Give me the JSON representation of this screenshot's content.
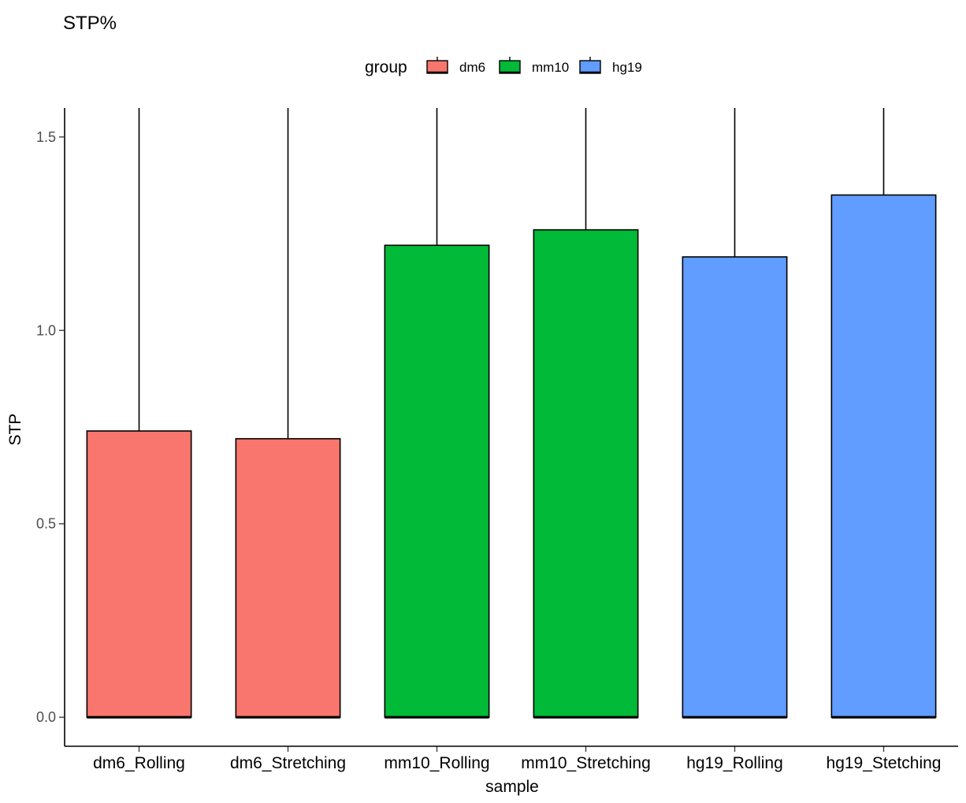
{
  "chart_data": {
    "type": "bar",
    "title": "STP%",
    "xlabel": "sample",
    "ylabel": "STP",
    "categories": [
      "dm6_Rolling",
      "dm6_Stretching",
      "mm10_Rolling",
      "mm10_Stretching",
      "hg19_Rolling",
      "hg19_Stetching"
    ],
    "values": [
      0.74,
      0.72,
      1.22,
      1.26,
      1.19,
      1.35
    ],
    "error_upper": [
      1.65,
      1.65,
      1.65,
      1.65,
      1.65,
      1.65
    ],
    "groups": [
      "dm6",
      "dm6",
      "mm10",
      "mm10",
      "hg19",
      "hg19"
    ],
    "ylim": [
      -0.075,
      1.575
    ],
    "yticks": [
      0.0,
      0.5,
      1.0,
      1.5
    ],
    "ytick_labels": [
      "0.0",
      "0.5",
      "1.0",
      "1.5"
    ],
    "grid": false,
    "legend": {
      "title": "group",
      "position": "top",
      "entries": [
        {
          "label": "dm6",
          "color": "#F8766D"
        },
        {
          "label": "mm10",
          "color": "#00BA38"
        },
        {
          "label": "hg19",
          "color": "#619CFF"
        }
      ]
    }
  }
}
